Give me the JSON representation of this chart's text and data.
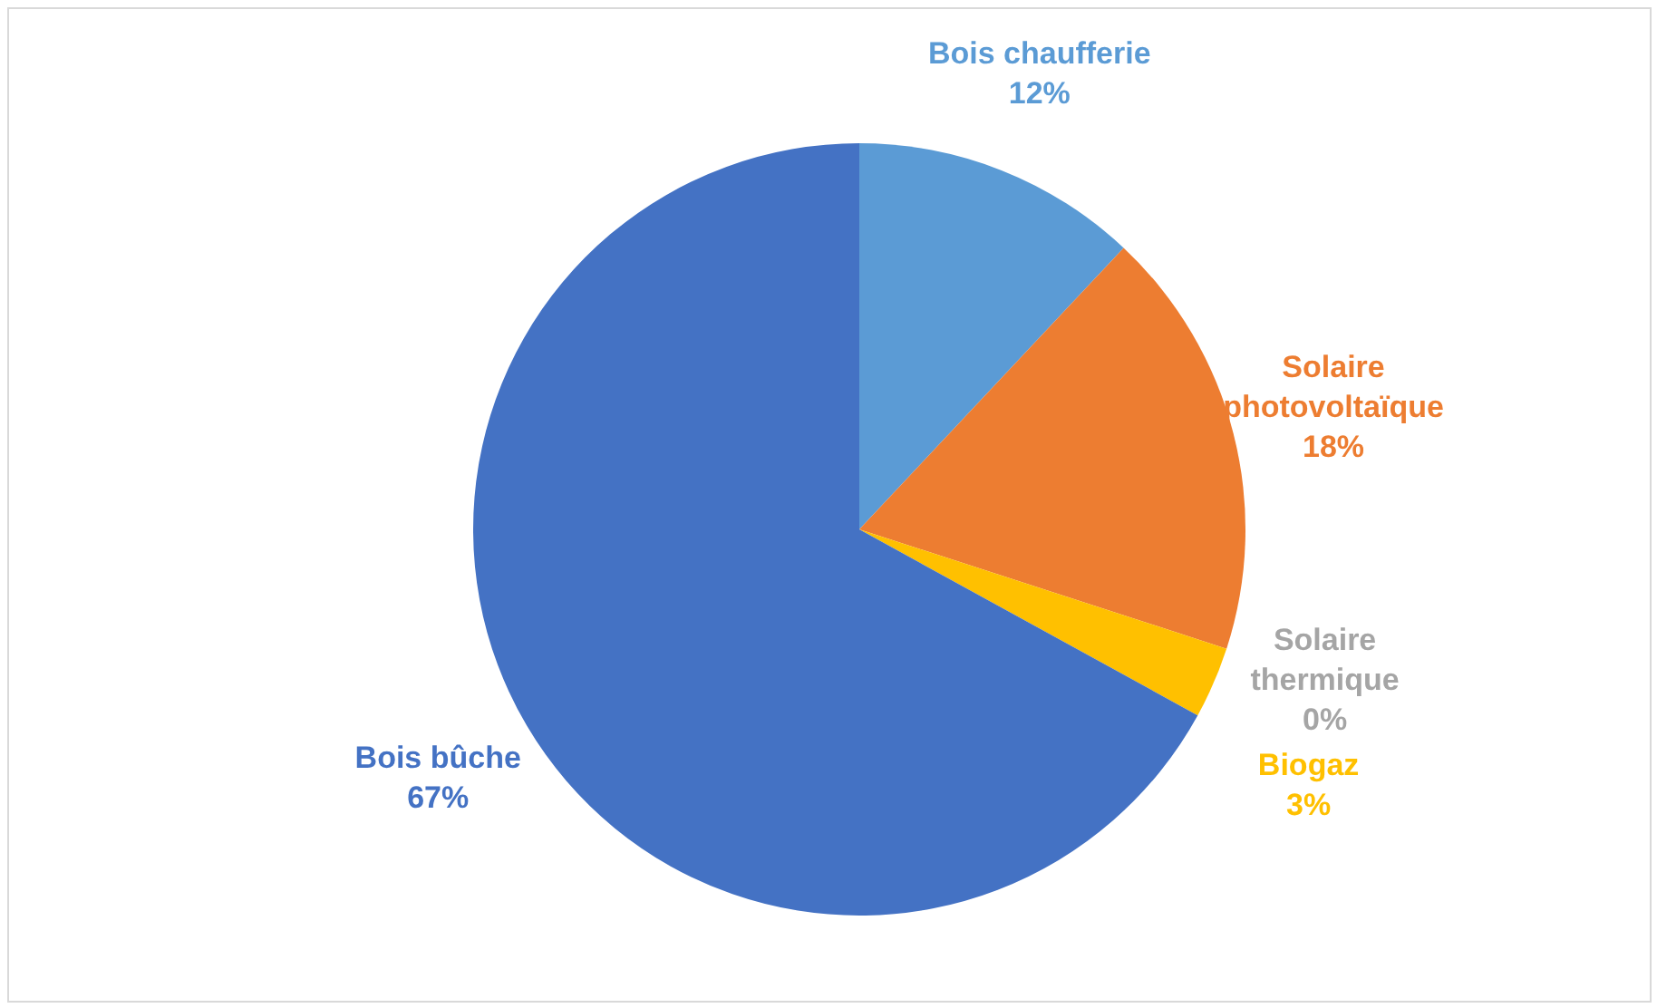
{
  "chart_data": {
    "type": "pie",
    "categories": [
      "Bois chaufferie",
      "Solaire photovoltaïque",
      "Solaire thermique",
      "Biogaz",
      "Bois bûche"
    ],
    "values": [
      12,
      18,
      0,
      3,
      67
    ],
    "colors": [
      "#5b9bd5",
      "#ed7d31",
      "#a5a5a5",
      "#ffc000",
      "#4472c4"
    ],
    "value_labels": [
      "12%",
      "18%",
      "0%",
      "3%",
      "67%"
    ]
  }
}
